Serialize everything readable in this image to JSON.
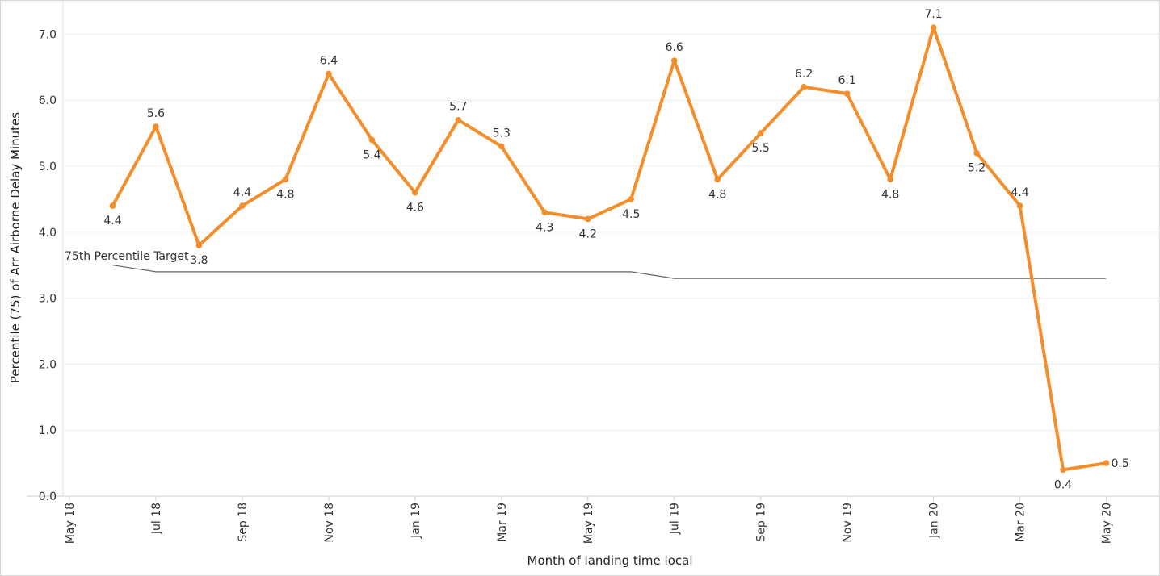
{
  "chart_data": {
    "type": "line",
    "xlabel": "Month of landing time local",
    "ylabel": "Percentile (75) of Arr Airborne Delay Minutes",
    "ylim": [
      0,
      7.4
    ],
    "yticks": [
      "0.0",
      "1.0",
      "2.0",
      "3.0",
      "4.0",
      "5.0",
      "6.0",
      "7.0"
    ],
    "xticks": [
      "May 18",
      "Jul 18",
      "Sep 18",
      "Nov 18",
      "Jan 19",
      "Mar 19",
      "May 19",
      "Jul 19",
      "Sep 19",
      "Nov 19",
      "Jan 20",
      "Mar 20",
      "May 20"
    ],
    "grid": true,
    "colors": {
      "series": "#f28e2b",
      "target": "#666666",
      "grid": "#ececec"
    },
    "x": [
      "Jun 18",
      "Jul 18",
      "Aug 18",
      "Sep 18",
      "Oct 18",
      "Nov 18",
      "Dec 18",
      "Jan 19",
      "Feb 19",
      "Mar 19",
      "Apr 19",
      "May 19",
      "Jun 19",
      "Jul 19",
      "Aug 19",
      "Sep 19",
      "Oct 19",
      "Nov 19",
      "Dec 19",
      "Jan 20",
      "Feb 20",
      "Mar 20",
      "Apr 20",
      "May 20"
    ],
    "series": [
      {
        "name": "",
        "values": [
          4.4,
          5.6,
          3.8,
          4.4,
          4.8,
          6.4,
          5.4,
          4.6,
          5.7,
          5.3,
          4.3,
          4.2,
          4.5,
          6.6,
          4.8,
          5.5,
          6.2,
          6.1,
          4.8,
          7.1,
          5.2,
          4.4,
          0.4,
          0.5
        ],
        "labels": [
          "4.4",
          "5.6",
          "3.8",
          "4.4",
          "4.8",
          "6.4",
          "5.4",
          "4.6",
          "5.7",
          "5.3",
          "4.3",
          "4.2",
          "4.5",
          "6.6",
          "4.8",
          "5.5",
          "6.2",
          "6.1",
          "4.8",
          "7.1",
          "5.2",
          "4.4",
          "0.4",
          "0.5"
        ],
        "label_pos": [
          "below",
          "above",
          "below",
          "above",
          "below",
          "above",
          "below",
          "below",
          "above",
          "above",
          "below",
          "below",
          "below",
          "above",
          "below",
          "below",
          "above",
          "above",
          "below",
          "above",
          "below",
          "above",
          "below",
          "right"
        ]
      }
    ],
    "target": {
      "label": "75th Percentile Target",
      "x": [
        "Jun 18",
        "Jul 18",
        "Jun 19",
        "Jul 19",
        "May 20"
      ],
      "values": [
        3.5,
        3.4,
        3.4,
        3.3,
        3.3
      ]
    }
  }
}
